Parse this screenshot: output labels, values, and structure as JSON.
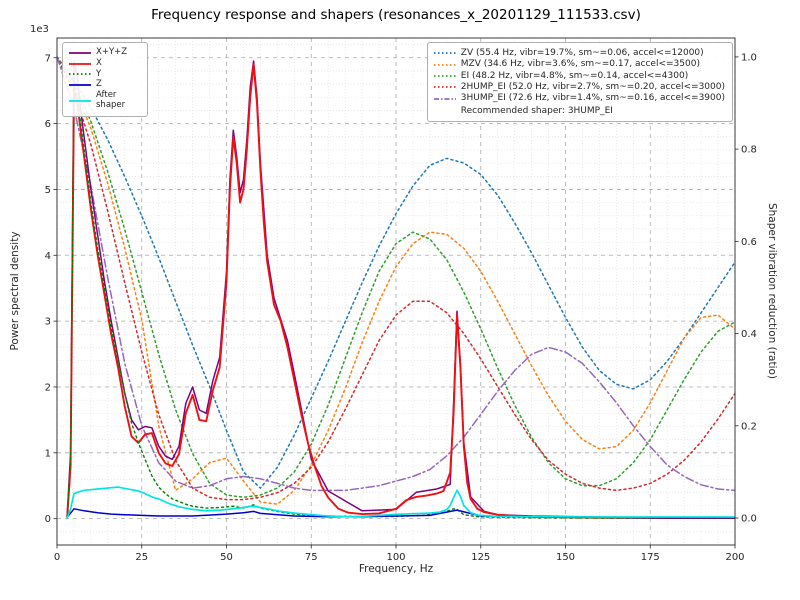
{
  "chart_data": {
    "type": "line",
    "title": "Frequency response and shapers (resonances_x_20201129_111533.csv)",
    "xlabel": "Frequency, Hz",
    "ylabel": "Power spectral density",
    "ylabel2": "Shaper vibration reduction (ratio)",
    "y_offset_text": "1e3",
    "xlim": [
      0,
      200
    ],
    "ylim_left": [
      0,
      7000
    ],
    "ylim_right": [
      0,
      1.0
    ],
    "grid": "major+minor",
    "legend_position": "upper left / upper right",
    "x_ticks": [
      0,
      25,
      50,
      75,
      100,
      125,
      150,
      175,
      200
    ],
    "y_ticks_left": [
      0,
      1,
      2,
      3,
      4,
      5,
      6,
      7
    ],
    "y_ticks_right": [
      "0.0",
      "0.2",
      "0.4",
      "0.6",
      "0.8",
      "1.0"
    ],
    "legend_note": "Recommended shaper: 3HUMP_EI",
    "psd_series": [
      {
        "name": "x-y-z",
        "label": "X+Y+Z",
        "color": "#7f007f",
        "style": "solid",
        "width": 1.5,
        "x": [
          3,
          4,
          5,
          6,
          7,
          8,
          10,
          12,
          14,
          16,
          18,
          20,
          22,
          24,
          26,
          28,
          30,
          32,
          34,
          36,
          38,
          40,
          42,
          44,
          46,
          48,
          50,
          51,
          52,
          53,
          54,
          55,
          56,
          57,
          58,
          59,
          60,
          62,
          64,
          68,
          70,
          75,
          80,
          90,
          100,
          106,
          112,
          116,
          117,
          118,
          119,
          120,
          122,
          126,
          130,
          140,
          160,
          180,
          200
        ],
        "y": [
          50,
          1000,
          6950,
          6700,
          6200,
          5800,
          5000,
          4300,
          3600,
          3000,
          2450,
          1900,
          1500,
          1350,
          1400,
          1380,
          1100,
          950,
          900,
          1100,
          1750,
          2000,
          1650,
          1600,
          2100,
          2450,
          3750,
          5150,
          5900,
          5500,
          4950,
          5150,
          5750,
          6550,
          6950,
          6400,
          5400,
          4000,
          3350,
          2700,
          2200,
          900,
          420,
          120,
          140,
          400,
          450,
          520,
          1750,
          3150,
          2350,
          1150,
          330,
          110,
          60,
          40,
          25,
          15,
          12
        ]
      },
      {
        "name": "x",
        "label": "X",
        "color": "#ee1111",
        "style": "solid",
        "width": 1.9,
        "x": [
          3,
          4,
          5,
          6,
          7,
          8,
          10,
          12,
          14,
          16,
          18,
          20,
          22,
          24,
          26,
          28,
          30,
          32,
          34,
          36,
          38,
          40,
          42,
          44,
          46,
          48,
          50,
          51,
          52,
          53,
          54,
          55,
          56,
          57,
          58,
          59,
          60,
          61,
          62,
          64,
          66,
          68,
          70,
          72,
          74,
          76,
          78,
          80,
          83,
          86,
          90,
          95,
          100,
          103,
          106,
          109,
          112,
          114,
          116,
          117,
          118,
          119,
          120,
          121,
          122,
          124,
          126,
          128,
          130,
          135,
          140,
          150,
          160,
          180,
          200
        ],
        "y": [
          20,
          800,
          6500,
          6300,
          5900,
          5500,
          4700,
          4000,
          3400,
          2800,
          2300,
          1700,
          1250,
          1150,
          1280,
          1300,
          1000,
          840,
          800,
          980,
          1600,
          1880,
          1500,
          1480,
          1950,
          2300,
          3600,
          5000,
          5800,
          5400,
          4800,
          5000,
          5600,
          6400,
          6900,
          6300,
          5300,
          4500,
          3900,
          3250,
          3000,
          2600,
          2100,
          1600,
          1150,
          800,
          500,
          320,
          150,
          90,
          70,
          80,
          150,
          280,
          330,
          350,
          380,
          420,
          700,
          1600,
          3100,
          2300,
          1100,
          550,
          300,
          150,
          100,
          80,
          60,
          40,
          30,
          20,
          15,
          10,
          10
        ]
      },
      {
        "name": "y",
        "label": "Y",
        "color": "#007f00",
        "style": "dotted",
        "width": 1.4,
        "x": [
          3,
          4,
          5,
          6,
          7,
          8,
          10,
          12,
          14,
          16,
          18,
          20,
          22,
          24,
          26,
          28,
          30,
          32,
          34,
          36,
          38,
          40,
          44,
          48,
          52,
          55,
          58,
          60,
          63,
          66,
          70,
          75,
          80,
          90,
          100,
          108,
          114,
          117,
          118,
          120,
          124,
          130,
          140,
          160,
          180,
          200
        ],
        "y": [
          30,
          900,
          6600,
          6400,
          6000,
          5600,
          4800,
          4100,
          3500,
          2900,
          2400,
          1900,
          1450,
          1150,
          900,
          650,
          480,
          380,
          300,
          260,
          220,
          190,
          160,
          170,
          190,
          160,
          210,
          160,
          130,
          100,
          70,
          50,
          40,
          30,
          35,
          50,
          90,
          150,
          140,
          60,
          30,
          20,
          15,
          10,
          10,
          10
        ]
      },
      {
        "name": "z",
        "label": "Z",
        "color": "#0000cc",
        "style": "solid",
        "width": 1.5,
        "x": [
          3,
          5,
          8,
          12,
          16,
          20,
          25,
          30,
          40,
          50,
          55,
          58,
          60,
          70,
          80,
          90,
          100,
          110,
          118,
          125,
          140,
          160,
          180,
          200
        ],
        "y": [
          20,
          150,
          120,
          90,
          70,
          60,
          50,
          40,
          40,
          70,
          90,
          110,
          80,
          40,
          30,
          30,
          40,
          50,
          130,
          40,
          25,
          20,
          15,
          15
        ]
      },
      {
        "name": "after-shaper",
        "label": "After shaper",
        "color": "#00e5e5",
        "style": "solid",
        "width": 1.7,
        "x": [
          3,
          4,
          5,
          6,
          8,
          10,
          12,
          14,
          16,
          18,
          20,
          22,
          24,
          26,
          28,
          30,
          33,
          36,
          40,
          44,
          48,
          52,
          55,
          57,
          58,
          60,
          63,
          66,
          70,
          75,
          80,
          85,
          90,
          95,
          100,
          105,
          110,
          113,
          115,
          116,
          117,
          118,
          119,
          120,
          122,
          124,
          127,
          130,
          140,
          160,
          180,
          200
        ],
        "y": [
          10,
          150,
          380,
          400,
          430,
          440,
          450,
          460,
          470,
          480,
          460,
          440,
          420,
          380,
          330,
          300,
          230,
          180,
          140,
          120,
          130,
          150,
          170,
          185,
          190,
          170,
          140,
          110,
          85,
          60,
          40,
          30,
          35,
          50,
          65,
          75,
          85,
          100,
          140,
          200,
          320,
          430,
          340,
          200,
          90,
          55,
          40,
          35,
          30,
          25,
          25,
          25
        ]
      }
    ],
    "shaper_x": [
      0,
      5,
      10,
      15,
      20,
      25,
      30,
      35,
      40,
      45,
      50,
      55,
      60,
      65,
      70,
      75,
      80,
      85,
      90,
      95,
      100,
      105,
      110,
      115,
      120,
      125,
      130,
      135,
      140,
      145,
      150,
      155,
      160,
      165,
      170,
      175,
      180,
      185,
      190,
      195,
      200
    ],
    "shaper_series": [
      {
        "name": "zv",
        "label": "ZV (55.4 Hz, vibr=19.7%, sm~=0.06, accel<=12000)",
        "color": "#1f77b4",
        "style": "dotted",
        "width": 1.5,
        "y": [
          1.0,
          0.95,
          0.89,
          0.82,
          0.74,
          0.655,
          0.565,
          0.47,
          0.375,
          0.285,
          0.19,
          0.1,
          0.065,
          0.11,
          0.18,
          0.26,
          0.34,
          0.425,
          0.51,
          0.59,
          0.66,
          0.72,
          0.765,
          0.78,
          0.77,
          0.745,
          0.7,
          0.64,
          0.575,
          0.505,
          0.435,
          0.37,
          0.32,
          0.29,
          0.28,
          0.3,
          0.34,
          0.39,
          0.445,
          0.5,
          0.555
        ]
      },
      {
        "name": "mzv",
        "label": "MZV (34.6 Hz, vibr=3.6%, sm~=0.17, accel<=3500)",
        "color": "#ff7f0e",
        "style": "dotted",
        "width": 1.5,
        "y": [
          1.0,
          0.935,
          0.845,
          0.725,
          0.585,
          0.43,
          0.2,
          0.06,
          0.085,
          0.12,
          0.13,
          0.08,
          0.035,
          0.03,
          0.06,
          0.115,
          0.19,
          0.28,
          0.38,
          0.47,
          0.545,
          0.595,
          0.62,
          0.615,
          0.585,
          0.535,
          0.47,
          0.4,
          0.33,
          0.265,
          0.21,
          0.17,
          0.15,
          0.155,
          0.19,
          0.25,
          0.32,
          0.39,
          0.435,
          0.44,
          0.41
        ]
      },
      {
        "name": "ei",
        "label": "EI (48.2 Hz, vibr=4.8%, sm~=0.14, accel<=4300)",
        "color": "#2ca02c",
        "style": "dotted",
        "width": 1.5,
        "y": [
          1.0,
          0.945,
          0.86,
          0.75,
          0.625,
          0.49,
          0.355,
          0.235,
          0.14,
          0.075,
          0.05,
          0.045,
          0.05,
          0.065,
          0.1,
          0.16,
          0.245,
          0.345,
          0.445,
          0.535,
          0.595,
          0.62,
          0.605,
          0.56,
          0.49,
          0.41,
          0.325,
          0.245,
          0.175,
          0.12,
          0.085,
          0.07,
          0.07,
          0.085,
          0.12,
          0.17,
          0.235,
          0.3,
          0.36,
          0.405,
          0.425
        ]
      },
      {
        "name": "2hump-ei",
        "label": "2HUMP_EI (52.0 Hz, vibr=2.7%, sm~=0.20, accel<=3000)",
        "color": "#d62728",
        "style": "dotted",
        "width": 1.5,
        "y": [
          1.0,
          0.925,
          0.81,
          0.665,
          0.51,
          0.36,
          0.225,
          0.125,
          0.065,
          0.045,
          0.04,
          0.04,
          0.045,
          0.055,
          0.075,
          0.11,
          0.165,
          0.235,
          0.31,
          0.385,
          0.44,
          0.47,
          0.47,
          0.445,
          0.4,
          0.345,
          0.285,
          0.225,
          0.17,
          0.125,
          0.095,
          0.075,
          0.065,
          0.06,
          0.065,
          0.075,
          0.095,
          0.125,
          0.165,
          0.215,
          0.27
        ]
      },
      {
        "name": "3hump-ei",
        "label": "3HUMP_EI (72.6 Hz, vibr=1.4%, sm~=0.16, accel<=3900)",
        "color": "#9467bd",
        "style": "dashdot",
        "width": 1.5,
        "y": [
          1.0,
          0.89,
          0.72,
          0.52,
          0.335,
          0.2,
          0.12,
          0.08,
          0.065,
          0.07,
          0.085,
          0.09,
          0.085,
          0.075,
          0.065,
          0.06,
          0.06,
          0.06,
          0.065,
          0.07,
          0.08,
          0.09,
          0.105,
          0.135,
          0.175,
          0.225,
          0.275,
          0.32,
          0.355,
          0.37,
          0.36,
          0.335,
          0.295,
          0.25,
          0.2,
          0.155,
          0.115,
          0.09,
          0.072,
          0.063,
          0.06
        ]
      }
    ]
  }
}
